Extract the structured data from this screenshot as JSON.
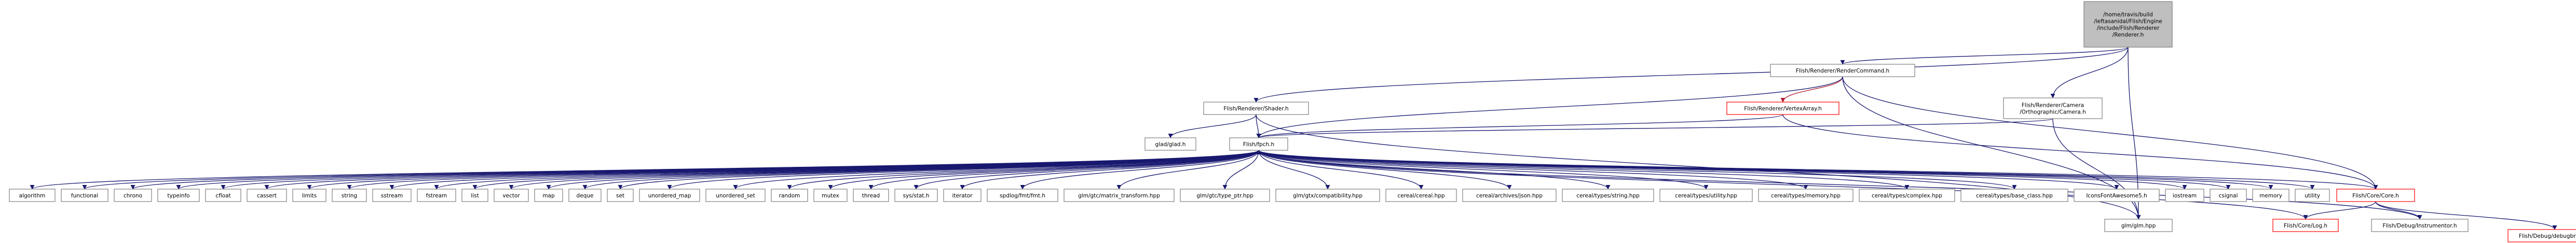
{
  "colors": {
    "edge": "#191970",
    "edge_red": "#b0182b",
    "node_border": "#7f7f7f",
    "node_border_red": "#ff0000",
    "root_fill": "#bfbfbf",
    "node_fill": "#ffffff"
  },
  "nodes": {
    "root": {
      "lines": [
        "/home/travis/build",
        "/leftasanidal/Flish/Engine",
        "/include/Flish/Renderer",
        "/Renderer.h"
      ]
    },
    "render_command": {
      "lines": [
        "Flish/Renderer/RenderCommand.h"
      ]
    },
    "shader": {
      "lines": [
        "Flish/Renderer/Shader.h"
      ]
    },
    "vertex_array": {
      "lines": [
        "Flish/Renderer/VertexArray.h"
      ]
    },
    "camera": {
      "lines": [
        "Flish/Renderer/Camera",
        "/Orthographic/Camera.h"
      ]
    },
    "glad": {
      "lines": [
        "glad/glad.h"
      ]
    },
    "glm": {
      "lines": [
        "glm/glm.hpp"
      ]
    },
    "fpch": {
      "lines": [
        "Flish/fpch.h"
      ]
    },
    "core": {
      "lines": [
        "Flish/Core/Core.h"
      ]
    },
    "log": {
      "lines": [
        "Flish/Core/Log.h"
      ]
    },
    "instrumentor": {
      "lines": [
        "Flish/Debug/Instrumentor.h"
      ]
    },
    "debugbreak": {
      "lines": [
        "Flish/Debug/debugbreak.h"
      ]
    },
    "algorithm": {
      "lines": [
        "algorithm"
      ]
    },
    "functional": {
      "lines": [
        "functional"
      ]
    },
    "chrono": {
      "lines": [
        "chrono"
      ]
    },
    "typeinfo": {
      "lines": [
        "typeinfo"
      ]
    },
    "cfloat": {
      "lines": [
        "cfloat"
      ]
    },
    "cassert": {
      "lines": [
        "cassert"
      ]
    },
    "limits": {
      "lines": [
        "limits"
      ]
    },
    "string": {
      "lines": [
        "string"
      ]
    },
    "sstream": {
      "lines": [
        "sstream"
      ]
    },
    "fstream": {
      "lines": [
        "fstream"
      ]
    },
    "list": {
      "lines": [
        "list"
      ]
    },
    "vector": {
      "lines": [
        "vector"
      ]
    },
    "map": {
      "lines": [
        "map"
      ]
    },
    "deque": {
      "lines": [
        "deque"
      ]
    },
    "set": {
      "lines": [
        "set"
      ]
    },
    "unordered_map": {
      "lines": [
        "unordered_map"
      ]
    },
    "unordered_set": {
      "lines": [
        "unordered_set"
      ]
    },
    "random": {
      "lines": [
        "random"
      ]
    },
    "mutex": {
      "lines": [
        "mutex"
      ]
    },
    "thread": {
      "lines": [
        "thread"
      ]
    },
    "sys_stat": {
      "lines": [
        "sys/stat.h"
      ]
    },
    "iterator": {
      "lines": [
        "iterator"
      ]
    },
    "spdlog": {
      "lines": [
        "spdlog/fmt/fmt.h"
      ]
    },
    "matrix_transform": {
      "lines": [
        "glm/gtc/matrix_transform.hpp"
      ]
    },
    "type_ptr": {
      "lines": [
        "glm/gtc/type_ptr.hpp"
      ]
    },
    "compatibility": {
      "lines": [
        "glm/gtx/compatibility.hpp"
      ]
    },
    "cereal": {
      "lines": [
        "cereal/cereal.hpp"
      ]
    },
    "json": {
      "lines": [
        "cereal/archives/json.hpp"
      ]
    },
    "c_string": {
      "lines": [
        "cereal/types/string.hpp"
      ]
    },
    "c_utility": {
      "lines": [
        "cereal/types/utility.hpp"
      ]
    },
    "c_memory": {
      "lines": [
        "cereal/types/memory.hpp"
      ]
    },
    "c_complex": {
      "lines": [
        "cereal/types/complex.hpp"
      ]
    },
    "c_base_class": {
      "lines": [
        "cereal/types/base_class.hpp"
      ]
    },
    "iconsfont": {
      "lines": [
        "IconsFontAwesome5.h"
      ]
    },
    "iostream": {
      "lines": [
        "iostream"
      ]
    },
    "csignal": {
      "lines": [
        "csignal"
      ]
    },
    "memory": {
      "lines": [
        "memory"
      ]
    },
    "utility": {
      "lines": [
        "utility"
      ]
    }
  }
}
